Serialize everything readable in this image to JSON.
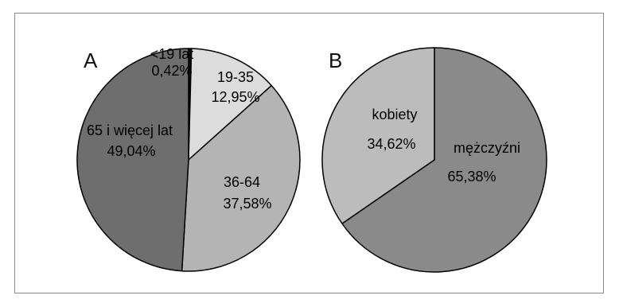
{
  "chart_data": [
    {
      "type": "pie",
      "panel_label": "A",
      "slices": [
        {
          "label": "<19 lat",
          "value_text": "0,42%",
          "value": 0.42,
          "color": "#111111"
        },
        {
          "label": "19-35",
          "value_text": "12,95%",
          "value": 12.95,
          "color": "#dcdcdc"
        },
        {
          "label": "36-64",
          "value_text": "37,58%",
          "value": 37.58,
          "color": "#b4b4b4"
        },
        {
          "label": "65 i więcej lat",
          "value_text": "49,04%",
          "value": 49.04,
          "color": "#6e6e6e"
        }
      ],
      "start": "top, clockwise"
    },
    {
      "type": "pie",
      "panel_label": "B",
      "slices": [
        {
          "label": "mężczyźni",
          "value_text": "65,38%",
          "value": 65.38,
          "color": "#8a8a8a"
        },
        {
          "label": "kobiety",
          "value_text": "34,62%",
          "value": 34.62,
          "color": "#bcbcbc"
        }
      ],
      "start": "top, clockwise"
    }
  ],
  "colors": {
    "outline": "#000000",
    "frame": "#8a8a8a",
    "label_text": "#111111"
  }
}
